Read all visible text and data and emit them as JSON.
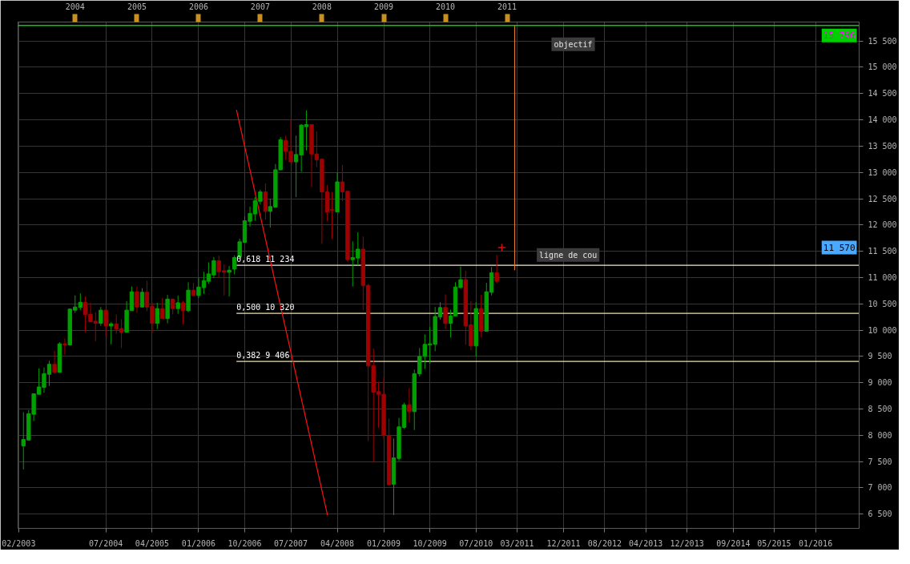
{
  "chart_data": {
    "type": "candlestick",
    "x": [
      "2003-03",
      "2003-04",
      "2003-05",
      "2003-06",
      "2003-07",
      "2003-08",
      "2003-09",
      "2003-10",
      "2003-11",
      "2003-12",
      "2004-01",
      "2004-02",
      "2004-03",
      "2004-04",
      "2004-05",
      "2004-06",
      "2004-07",
      "2004-08",
      "2004-09",
      "2004-10",
      "2004-11",
      "2004-12",
      "2005-01",
      "2005-02",
      "2005-03",
      "2005-04",
      "2005-05",
      "2005-06",
      "2005-07",
      "2005-08",
      "2005-09",
      "2005-10",
      "2005-11",
      "2005-12",
      "2006-01",
      "2006-02",
      "2006-03",
      "2006-04",
      "2006-05",
      "2006-06",
      "2006-07",
      "2006-08",
      "2006-09",
      "2006-10",
      "2006-11",
      "2006-12",
      "2007-01",
      "2007-02",
      "2007-03",
      "2007-04",
      "2007-05",
      "2007-06",
      "2007-07",
      "2007-08",
      "2007-09",
      "2007-10",
      "2007-11",
      "2007-12",
      "2008-01",
      "2008-02",
      "2008-03",
      "2008-04",
      "2008-05",
      "2008-06",
      "2008-07",
      "2008-08",
      "2008-09",
      "2008-10",
      "2008-11",
      "2008-12",
      "2009-01",
      "2009-02",
      "2009-03",
      "2009-04",
      "2009-05",
      "2009-06",
      "2009-07",
      "2009-08",
      "2009-09",
      "2009-10",
      "2009-11",
      "2009-12",
      "2010-01",
      "2010-02",
      "2010-03",
      "2010-04",
      "2010-05",
      "2010-06",
      "2010-07",
      "2010-08",
      "2010-09",
      "2010-10",
      "2010-11"
    ],
    "ohlc": [
      [
        7800,
        8440,
        7350,
        7920
      ],
      [
        7910,
        8480,
        7900,
        8410
      ],
      [
        8400,
        8790,
        8270,
        8790
      ],
      [
        8780,
        9270,
        8780,
        8920
      ],
      [
        8910,
        9290,
        8810,
        9170
      ],
      [
        9160,
        9420,
        8940,
        9350
      ],
      [
        9350,
        9610,
        9170,
        9200
      ],
      [
        9200,
        9770,
        9190,
        9740
      ],
      [
        9740,
        9840,
        9530,
        9720
      ],
      [
        9720,
        10410,
        9710,
        10400
      ],
      [
        10380,
        10660,
        10330,
        10440
      ],
      [
        10430,
        10700,
        10380,
        10530
      ],
      [
        10530,
        10640,
        9960,
        10300
      ],
      [
        10300,
        10520,
        10150,
        10160
      ],
      [
        10170,
        10340,
        9790,
        10130
      ],
      [
        10130,
        10440,
        10080,
        10380
      ],
      [
        10380,
        10390,
        9870,
        10080
      ],
      [
        10080,
        10150,
        9730,
        10120
      ],
      [
        10120,
        10300,
        9930,
        10020
      ],
      [
        10030,
        10210,
        9660,
        9960
      ],
      [
        9960,
        10550,
        9960,
        10380
      ],
      [
        10370,
        10830,
        10370,
        10730
      ],
      [
        10730,
        10830,
        10330,
        10440
      ],
      [
        10440,
        10800,
        10430,
        10720
      ],
      [
        10720,
        10940,
        10360,
        10440
      ],
      [
        10450,
        10520,
        9950,
        10130
      ],
      [
        10130,
        10520,
        10020,
        10410
      ],
      [
        10410,
        10610,
        10210,
        10220
      ],
      [
        10220,
        10670,
        10130,
        10590
      ],
      [
        10590,
        10600,
        10300,
        10410
      ],
      [
        10410,
        10660,
        10310,
        10520
      ],
      [
        10520,
        10560,
        10110,
        10370
      ],
      [
        10370,
        10910,
        10340,
        10760
      ],
      [
        10760,
        10900,
        10650,
        10660
      ],
      [
        10660,
        11000,
        10610,
        10820
      ],
      [
        10810,
        11110,
        10690,
        10940
      ],
      [
        10930,
        11290,
        10880,
        11070
      ],
      [
        11050,
        11390,
        10990,
        11320
      ],
      [
        11320,
        11420,
        10990,
        11110
      ],
      [
        11130,
        11250,
        10660,
        11100
      ],
      [
        11100,
        11220,
        10640,
        11140
      ],
      [
        11160,
        11420,
        11060,
        11380
      ],
      [
        11390,
        11740,
        11380,
        11680
      ],
      [
        11670,
        12160,
        11670,
        12080
      ],
      [
        12070,
        12350,
        11970,
        12220
      ],
      [
        12210,
        12530,
        12080,
        12460
      ],
      [
        12450,
        12670,
        12390,
        12630
      ],
      [
        12630,
        12790,
        12100,
        12260
      ],
      [
        12260,
        12500,
        11950,
        12350
      ],
      [
        12340,
        13160,
        12340,
        13050
      ],
      [
        13050,
        13670,
        13040,
        13620
      ],
      [
        13610,
        13700,
        13240,
        13400
      ],
      [
        13400,
        14010,
        13200,
        13200
      ],
      [
        13200,
        13700,
        12530,
        13340
      ],
      [
        13330,
        13920,
        13010,
        13900
      ],
      [
        13870,
        14180,
        13420,
        13910
      ],
      [
        13910,
        13910,
        12720,
        13350
      ],
      [
        13350,
        13780,
        13100,
        13240
      ],
      [
        13250,
        13250,
        11640,
        12630
      ],
      [
        12630,
        12760,
        12070,
        12250
      ],
      [
        12290,
        12630,
        11730,
        12280
      ],
      [
        12250,
        13000,
        12250,
        12820
      ],
      [
        12820,
        13140,
        12450,
        12630
      ],
      [
        12640,
        12640,
        11300,
        11340
      ],
      [
        11340,
        11690,
        10830,
        11380
      ],
      [
        11370,
        11860,
        11230,
        11540
      ],
      [
        11540,
        11780,
        10380,
        10850
      ],
      [
        10850,
        10880,
        7890,
        9320
      ],
      [
        9320,
        9650,
        7480,
        8820
      ],
      [
        8830,
        9020,
        8140,
        8780
      ],
      [
        8780,
        9110,
        7940,
        8000
      ],
      [
        8000,
        8320,
        7060,
        7060
      ],
      [
        7070,
        7940,
        6480,
        7570
      ],
      [
        7560,
        8330,
        7510,
        8160
      ],
      [
        8150,
        8620,
        8120,
        8580
      ],
      [
        8580,
        8900,
        8250,
        8450
      ],
      [
        8450,
        9250,
        8100,
        9170
      ],
      [
        9170,
        9660,
        9120,
        9500
      ],
      [
        9500,
        9920,
        9260,
        9730
      ],
      [
        9720,
        10060,
        9360,
        9740
      ],
      [
        9730,
        10440,
        9600,
        10260
      ],
      [
        10250,
        10530,
        10200,
        10430
      ],
      [
        10430,
        10680,
        10020,
        10130
      ],
      [
        10130,
        10390,
        9860,
        10270
      ],
      [
        10270,
        10910,
        10270,
        10820
      ],
      [
        10810,
        11210,
        10790,
        10960
      ],
      [
        10960,
        11130,
        9720,
        10080
      ],
      [
        10100,
        10550,
        9620,
        9700
      ],
      [
        9700,
        10530,
        9500,
        10410
      ],
      [
        10410,
        10670,
        9860,
        9980
      ],
      [
        9980,
        10900,
        9980,
        10730
      ],
      [
        10720,
        11200,
        10660,
        11090
      ],
      [
        11090,
        11430,
        10890,
        10930
      ]
    ],
    "colors": [
      "#00a000",
      "#00a000",
      "#00a000",
      "#00a000",
      "#00a000",
      "#00a000",
      "#a00000",
      "#00a000",
      "#a00000",
      "#00a000",
      "#00a000",
      "#00a000",
      "#a00000",
      "#a00000",
      "#a00000",
      "#00a000",
      "#a00000",
      "#00a000",
      "#a00000",
      "#a00000",
      "#00a000",
      "#00a000",
      "#a00000",
      "#00a000",
      "#a00000",
      "#a00000",
      "#00a000",
      "#a00000",
      "#00a000",
      "#a00000",
      "#00a000",
      "#a00000",
      "#00a000",
      "#a00000",
      "#00a000",
      "#00a000",
      "#00a000",
      "#00a000",
      "#a00000",
      "#a00000",
      "#00a000",
      "#00a000",
      "#00a000",
      "#00a000",
      "#00a000",
      "#00a000",
      "#00a000",
      "#a00000",
      "#00a000",
      "#00a000",
      "#00a000",
      "#a00000",
      "#a00000",
      "#00a000",
      "#00a000",
      "#00a000",
      "#a00000",
      "#a00000",
      "#a00000",
      "#a00000",
      "#a00000",
      "#00a000",
      "#a00000",
      "#a00000",
      "#00a000",
      "#00a000",
      "#a00000",
      "#a00000",
      "#a00000",
      "#a00000",
      "#a00000",
      "#a00000",
      "#00a000",
      "#00a000",
      "#00a000",
      "#a00000",
      "#00a000",
      "#00a000",
      "#00a000",
      "#00a000",
      "#00a000",
      "#00a000",
      "#a00000",
      "#00a000",
      "#00a000",
      "#00a000",
      "#a00000",
      "#a00000",
      "#00a000",
      "#a00000",
      "#00a000",
      "#00a000",
      "#a00000"
    ],
    "series": [
      {
        "type": "line",
        "name": "0,618 11 234",
        "color": "#f2ead0",
        "x": [
          "2006-08-13",
          "2016-09-15"
        ],
        "values": [
          11234,
          11234
        ]
      },
      {
        "type": "line",
        "name": "0,500 10 320",
        "color": "#efe2a8",
        "x": [
          "2006-08-13",
          "2016-09-15"
        ],
        "values": [
          10320,
          10320
        ]
      },
      {
        "type": "line",
        "name": "0,382 9 406",
        "color": "#efe2a8",
        "x": [
          "2006-08-13",
          "2016-09-15"
        ],
        "values": [
          9406,
          9406
        ]
      },
      {
        "type": "line",
        "color": "#ff1010",
        "x": [
          "2006-08-13",
          "2008-02-03"
        ],
        "values": [
          14190,
          6480
        ]
      },
      {
        "type": "line",
        "color": "#e07b2a",
        "x": [
          "2011-02-15",
          "2011-02-15"
        ],
        "values": [
          11140,
          15796
        ]
      },
      {
        "type": "scatter",
        "color": "#d01010",
        "marker": "cross",
        "x": [
          "2010-12"
        ],
        "values": [
          11570
        ]
      }
    ],
    "ref_lines": [
      {
        "axis": "y",
        "value": 15796,
        "label": "15 796",
        "color": "#00d000"
      }
    ],
    "annotations": [
      "objectif",
      "ligne de cou",
      {
        "text": "11 570",
        "y": 11570
      }
    ],
    "xlim": [
      "2003-01-28",
      "2016-09-15"
    ],
    "xticks": [
      {
        "value": "2003-02",
        "label": "02/2003"
      },
      {
        "value": "2004-07",
        "label": "07/2004"
      },
      {
        "value": "2005-04",
        "label": "04/2005"
      },
      {
        "value": "2006-01",
        "label": "01/2006"
      },
      {
        "value": "2006-10",
        "label": "10/2006"
      },
      {
        "value": "2007-07",
        "label": "07/2007"
      },
      {
        "value": "2008-04",
        "label": "04/2008"
      },
      {
        "value": "2009-01",
        "label": "01/2009"
      },
      {
        "value": "2009-10",
        "label": "10/2009"
      },
      {
        "value": "2010-07",
        "label": "07/2010"
      },
      {
        "value": "2011-03",
        "label": "03/2011"
      },
      {
        "value": "2011-12",
        "label": "12/2011"
      },
      {
        "value": "2012-08",
        "label": "08/2012"
      },
      {
        "value": "2013-04",
        "label": "04/2013"
      },
      {
        "value": "2013-12",
        "label": "12/2013"
      },
      {
        "value": "2014-09",
        "label": "09/2014"
      },
      {
        "value": "2015-05",
        "label": "05/2015"
      },
      {
        "value": "2016-01",
        "label": "01/2016"
      }
    ],
    "x2lim": [
      "2003-01-28",
      "2016-09-15"
    ],
    "x2ticks": [
      "2004",
      "2005",
      "2006",
      "2007",
      "2008",
      "2009",
      "2010",
      "2011"
    ],
    "ylim": [
      6230,
      15860
    ],
    "yticks": [
      {
        "value": 6500,
        "label": "6 500"
      },
      {
        "value": 7000,
        "label": "7 000"
      },
      {
        "value": 7500,
        "label": "7 500"
      },
      {
        "value": 8000,
        "label": "8 000"
      },
      {
        "value": 8500,
        "label": "8 500"
      },
      {
        "value": 9000,
        "label": "9 000"
      },
      {
        "value": 9500,
        "label": "9 500"
      },
      {
        "value": 10000,
        "label": "10 000"
      },
      {
        "value": 10500,
        "label": "10 500"
      },
      {
        "value": 11000,
        "label": "11 000"
      },
      {
        "value": 11500,
        "label": "11 500"
      },
      {
        "value": 12000,
        "label": "12 000"
      },
      {
        "value": 12500,
        "label": "12 500"
      },
      {
        "value": 13000,
        "label": "13 000"
      },
      {
        "value": 13500,
        "label": "13 500"
      },
      {
        "value": 14000,
        "label": "14 000"
      },
      {
        "value": 14500,
        "label": "14 500"
      },
      {
        "value": 15000,
        "label": "15 000"
      },
      {
        "value": 15500,
        "label": "15 500"
      }
    ],
    "grid": true
  }
}
